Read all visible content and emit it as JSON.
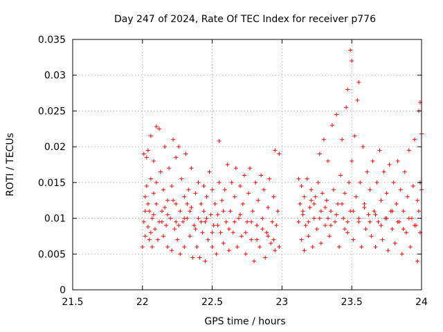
{
  "chart_data": {
    "type": "scatter",
    "title": "Day 247 of 2024, Rate Of TEC Index for receiver p776",
    "xlabel": "GPS time / hours",
    "ylabel": "ROTI / TECUs",
    "xlim": [
      21.5,
      24
    ],
    "ylim": [
      0,
      0.035
    ],
    "xticks": [
      "21.5",
      "22",
      "22.5",
      "23",
      "23.5",
      "24"
    ],
    "yticks": [
      "0",
      "0.005",
      "0.01",
      "0.015",
      "0.02",
      "0.025",
      "0.03",
      "0.035"
    ],
    "grid": true,
    "marker": "+",
    "color": "#ff0000",
    "series": [
      {
        "name": "ROTI",
        "points": [
          [
            22.0,
            0.006
          ],
          [
            22.01,
            0.0095
          ],
          [
            22.01,
            0.019
          ],
          [
            22.02,
            0.013
          ],
          [
            22.02,
            0.0075
          ],
          [
            22.03,
            0.0185
          ],
          [
            22.03,
            0.0145
          ],
          [
            22.04,
            0.0088
          ],
          [
            22.04,
            0.0195
          ],
          [
            22.05,
            0.011
          ],
          [
            22.05,
            0.007
          ],
          [
            22.06,
            0.0155
          ],
          [
            22.06,
            0.0215
          ],
          [
            22.07,
            0.01
          ],
          [
            22.07,
            0.006
          ],
          [
            22.08,
            0.0135
          ],
          [
            22.08,
            0.018
          ],
          [
            22.09,
            0.0085
          ],
          [
            22.1,
            0.0228
          ],
          [
            22.1,
            0.012
          ],
          [
            22.11,
            0.007
          ],
          [
            22.12,
            0.0225
          ],
          [
            22.12,
            0.0095
          ],
          [
            22.13,
            0.0165
          ],
          [
            22.14,
            0.011
          ],
          [
            22.15,
            0.0075
          ],
          [
            22.15,
            0.014
          ],
          [
            22.16,
            0.02
          ],
          [
            22.17,
            0.009
          ],
          [
            22.18,
            0.0125
          ],
          [
            22.18,
            0.006
          ],
          [
            22.19,
            0.017
          ],
          [
            22.2,
            0.01
          ],
          [
            22.21,
            0.0145
          ],
          [
            22.21,
            0.0055
          ],
          [
            22.22,
            0.021
          ],
          [
            22.23,
            0.0085
          ],
          [
            22.24,
            0.012
          ],
          [
            22.24,
            0.0185
          ],
          [
            22.25,
            0.007
          ],
          [
            22.26,
            0.02
          ],
          [
            22.27,
            0.011
          ],
          [
            22.27,
            0.005
          ],
          [
            22.28,
            0.0155
          ],
          [
            22.29,
            0.0095
          ],
          [
            22.3,
            0.013
          ],
          [
            22.3,
            0.006
          ],
          [
            22.31,
            0.019
          ],
          [
            22.32,
            0.01
          ],
          [
            22.33,
            0.014
          ],
          [
            22.34,
            0.0075
          ],
          [
            22.35,
            0.017
          ],
          [
            22.35,
            0.0115
          ],
          [
            22.36,
            0.0045
          ],
          [
            22.37,
            0.009
          ],
          [
            22.38,
            0.0135
          ],
          [
            22.39,
            0.006
          ],
          [
            22.4,
            0.015
          ],
          [
            22.4,
            0.01
          ],
          [
            22.41,
            0.0045
          ],
          [
            22.42,
            0.012
          ],
          [
            22.43,
            0.008
          ],
          [
            22.44,
            0.0145
          ],
          [
            22.45,
            0.0095
          ],
          [
            22.45,
            0.004
          ],
          [
            22.46,
            0.013
          ],
          [
            22.47,
            0.007
          ],
          [
            22.48,
            0.0165
          ],
          [
            22.49,
            0.0105
          ],
          [
            22.5,
            0.006
          ],
          [
            22.5,
            0.014
          ],
          [
            22.51,
            0.009
          ],
          [
            22.52,
            0.012
          ],
          [
            22.53,
            0.005
          ],
          [
            22.54,
            0.0105
          ],
          [
            22.55,
            0.0208
          ],
          [
            22.55,
            0.015
          ],
          [
            22.56,
            0.008
          ],
          [
            22.57,
            0.0125
          ],
          [
            22.58,
            0.0065
          ],
          [
            22.59,
            0.014
          ],
          [
            22.6,
            0.0095
          ],
          [
            22.61,
            0.0175
          ],
          [
            22.62,
            0.0055
          ],
          [
            22.63,
            0.011
          ],
          [
            22.64,
            0.015
          ],
          [
            22.65,
            0.008
          ],
          [
            22.66,
            0.013
          ],
          [
            22.67,
            0.017
          ],
          [
            22.68,
            0.006
          ],
          [
            22.69,
            0.01
          ],
          [
            22.7,
            0.0145
          ],
          [
            22.71,
            0.0075
          ],
          [
            22.72,
            0.012
          ],
          [
            22.73,
            0.016
          ],
          [
            22.74,
            0.005
          ],
          [
            22.75,
            0.0095
          ],
          [
            22.76,
            0.0135
          ],
          [
            22.77,
            0.017
          ],
          [
            22.78,
            0.007
          ],
          [
            22.79,
            0.011
          ],
          [
            22.8,
            0.004
          ],
          [
            22.81,
            0.015
          ],
          [
            22.82,
            0.009
          ],
          [
            22.83,
            0.0125
          ],
          [
            22.84,
            0.006
          ],
          [
            22.85,
            0.016
          ],
          [
            22.86,
            0.01
          ],
          [
            22.87,
            0.014
          ],
          [
            22.88,
            0.0045
          ],
          [
            22.89,
            0.008
          ],
          [
            22.9,
            0.0115
          ],
          [
            22.91,
            0.0155
          ],
          [
            22.92,
            0.0065
          ],
          [
            22.93,
            0.0095
          ],
          [
            22.94,
            0.013
          ],
          [
            22.95,
            0.0195
          ],
          [
            22.95,
            0.0055
          ],
          [
            22.96,
            0.009
          ],
          [
            22.97,
            0.011
          ],
          [
            22.98,
            0.019
          ],
          [
            22.98,
            0.006
          ],
          [
            22.02,
            0.011
          ],
          [
            22.06,
            0.008
          ],
          [
            22.1,
            0.015
          ],
          [
            22.14,
            0.0095
          ],
          [
            22.18,
            0.0105
          ],
          [
            22.22,
            0.0125
          ],
          [
            22.26,
            0.009
          ],
          [
            22.3,
            0.01
          ],
          [
            22.34,
            0.011
          ],
          [
            22.38,
            0.0085
          ],
          [
            22.42,
            0.0095
          ],
          [
            22.46,
            0.01
          ],
          [
            22.5,
            0.008
          ],
          [
            22.54,
            0.009
          ],
          [
            22.58,
            0.011
          ],
          [
            22.62,
            0.0085
          ],
          [
            22.66,
            0.0095
          ],
          [
            22.7,
            0.0105
          ],
          [
            22.74,
            0.008
          ],
          [
            22.78,
            0.0095
          ],
          [
            22.82,
            0.007
          ],
          [
            22.86,
            0.0085
          ],
          [
            22.9,
            0.0075
          ],
          [
            22.94,
            0.007
          ],
          [
            22.04,
            0.012
          ],
          [
            22.08,
            0.0105
          ],
          [
            22.16,
            0.0115
          ],
          [
            22.24,
            0.0095
          ],
          [
            22.32,
            0.012
          ],
          [
            22.44,
            0.011
          ],
          [
            23.12,
            0.0155
          ],
          [
            23.12,
            0.0095
          ],
          [
            23.13,
            0.012
          ],
          [
            23.14,
            0.007
          ],
          [
            23.14,
            0.0145
          ],
          [
            23.15,
            0.0105
          ],
          [
            23.16,
            0.0055
          ],
          [
            23.16,
            0.013
          ],
          [
            23.17,
            0.009
          ],
          [
            23.18,
            0.0155
          ],
          [
            23.19,
            0.0075
          ],
          [
            23.2,
            0.0115
          ],
          [
            23.21,
            0.014
          ],
          [
            23.22,
            0.006
          ],
          [
            23.23,
            0.01
          ],
          [
            23.24,
            0.013
          ],
          [
            23.25,
            0.0085
          ],
          [
            23.26,
            0.015
          ],
          [
            23.27,
            0.019
          ],
          [
            23.28,
            0.011
          ],
          [
            23.28,
            0.0065
          ],
          [
            23.29,
            0.0135
          ],
          [
            23.3,
            0.021
          ],
          [
            23.31,
            0.009
          ],
          [
            23.32,
            0.0125
          ],
          [
            23.33,
            0.018
          ],
          [
            23.34,
            0.0075
          ],
          [
            23.35,
            0.011
          ],
          [
            23.36,
            0.023
          ],
          [
            23.37,
            0.014
          ],
          [
            23.38,
            0.0095
          ],
          [
            23.39,
            0.0245
          ],
          [
            23.4,
            0.012
          ],
          [
            23.41,
            0.006
          ],
          [
            23.42,
            0.016
          ],
          [
            23.43,
            0.021
          ],
          [
            23.44,
            0.01
          ],
          [
            23.45,
            0.0135
          ],
          [
            23.46,
            0.0255
          ],
          [
            23.47,
            0.008
          ],
          [
            23.47,
            0.028
          ],
          [
            23.48,
            0.015
          ],
          [
            23.49,
            0.0335
          ],
          [
            23.49,
            0.011
          ],
          [
            23.5,
            0.032
          ],
          [
            23.5,
            0.018
          ],
          [
            23.51,
            0.007
          ],
          [
            23.52,
            0.0215
          ],
          [
            23.53,
            0.013
          ],
          [
            23.54,
            0.0265
          ],
          [
            23.55,
            0.029
          ],
          [
            23.55,
            0.0095
          ],
          [
            23.56,
            0.015
          ],
          [
            23.57,
            0.006
          ],
          [
            23.58,
            0.02
          ],
          [
            23.59,
            0.012
          ],
          [
            23.6,
            0.0085
          ],
          [
            23.61,
            0.0165
          ],
          [
            23.62,
            0.0105
          ],
          [
            23.63,
            0.014
          ],
          [
            23.64,
            0.0075
          ],
          [
            23.65,
            0.018
          ],
          [
            23.66,
            0.011
          ],
          [
            23.67,
            0.006
          ],
          [
            23.68,
            0.015
          ],
          [
            23.69,
            0.0095
          ],
          [
            23.7,
            0.0195
          ],
          [
            23.71,
            0.0125
          ],
          [
            23.72,
            0.007
          ],
          [
            23.73,
            0.0165
          ],
          [
            23.74,
            0.01
          ],
          [
            23.75,
            0.0135
          ],
          [
            23.76,
            0.0055
          ],
          [
            23.77,
            0.0175
          ],
          [
            23.78,
            0.011
          ],
          [
            23.79,
            0.0085
          ],
          [
            23.8,
            0.015
          ],
          [
            23.81,
            0.0065
          ],
          [
            23.82,
            0.012
          ],
          [
            23.83,
            0.018
          ],
          [
            23.84,
            0.0095
          ],
          [
            23.85,
            0.014
          ],
          [
            23.86,
            0.005
          ],
          [
            23.87,
            0.011
          ],
          [
            23.88,
            0.0165
          ],
          [
            23.89,
            0.008
          ],
          [
            23.9,
            0.013
          ],
          [
            23.91,
            0.0195
          ],
          [
            23.92,
            0.006
          ],
          [
            23.93,
            0.01
          ],
          [
            23.94,
            0.0145
          ],
          [
            23.95,
            0.021
          ],
          [
            23.96,
            0.009
          ],
          [
            23.97,
            0.0125
          ],
          [
            23.97,
            0.004
          ],
          [
            23.98,
            0.025
          ],
          [
            23.98,
            0.011
          ],
          [
            23.99,
            0.0262
          ],
          [
            23.99,
            0.015
          ],
          [
            24.0,
            0.0218
          ],
          [
            24.0,
            0.014
          ],
          [
            23.15,
            0.011
          ],
          [
            23.19,
            0.0095
          ],
          [
            23.23,
            0.012
          ],
          [
            23.27,
            0.01
          ],
          [
            23.31,
            0.0115
          ],
          [
            23.35,
            0.009
          ],
          [
            23.39,
            0.0105
          ],
          [
            23.43,
            0.012
          ],
          [
            23.47,
            0.0095
          ],
          [
            23.51,
            0.011
          ],
          [
            23.55,
            0.01
          ],
          [
            23.59,
            0.0115
          ],
          [
            23.63,
            0.0095
          ],
          [
            23.67,
            0.0105
          ],
          [
            23.71,
            0.009
          ],
          [
            23.75,
            0.01
          ],
          [
            23.79,
            0.011
          ],
          [
            23.83,
            0.0095
          ],
          [
            23.87,
            0.0085
          ],
          [
            23.91,
            0.01
          ],
          [
            23.95,
            0.009
          ],
          [
            23.99,
            0.008
          ],
          [
            23.21,
            0.0125
          ],
          [
            23.33,
            0.01
          ],
          [
            23.45,
            0.0085
          ]
        ]
      }
    ]
  }
}
